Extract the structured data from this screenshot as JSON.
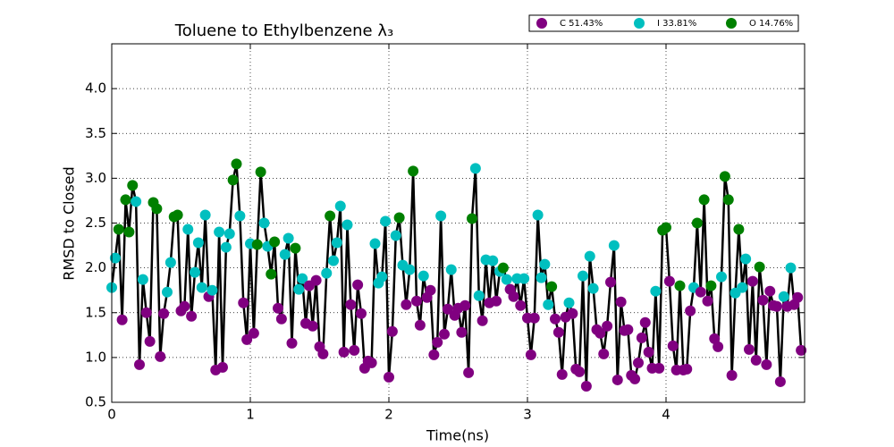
{
  "chart_data": {
    "type": "line",
    "title": "Toluene to Ethylbenzene λ₃",
    "xlabel": "Time(ns)",
    "ylabel": "RMSD to Closed",
    "line_color": "#000000",
    "legend": [
      {
        "name": "C 51.43%",
        "color": "purple"
      },
      {
        "name": "I 33.81%",
        "color": "#00bfbf"
      },
      {
        "name": "O 14.76%",
        "color": "green"
      }
    ],
    "x": [
      0,
      0.025,
      0.05,
      0.075,
      0.1,
      0.125,
      0.15,
      0.175,
      0.2,
      0.225,
      0.25,
      0.275,
      0.3,
      0.325,
      0.35,
      0.375,
      0.4,
      0.425,
      0.45,
      0.475,
      0.5,
      0.525,
      0.55,
      0.575,
      0.6,
      0.625,
      0.65,
      0.675,
      0.7,
      0.725,
      0.75,
      0.775,
      0.8,
      0.825,
      0.85,
      0.875,
      0.9,
      0.925,
      0.95,
      0.975,
      1,
      1.025,
      1.05,
      1.075,
      1.1,
      1.125,
      1.15,
      1.175,
      1.2,
      1.225,
      1.25,
      1.275,
      1.3,
      1.325,
      1.35,
      1.375,
      1.4,
      1.425,
      1.45,
      1.475,
      1.5,
      1.525,
      1.55,
      1.575,
      1.6,
      1.625,
      1.65,
      1.675,
      1.7,
      1.725,
      1.75,
      1.775,
      1.8,
      1.825,
      1.85,
      1.875,
      1.9,
      1.925,
      1.95,
      1.975,
      2,
      2.025,
      2.05,
      2.075,
      2.1,
      2.125,
      2.15,
      2.175,
      2.2,
      2.225,
      2.25,
      2.275,
      2.3,
      2.325,
      2.35,
      2.375,
      2.4,
      2.425,
      2.45,
      2.475,
      2.5,
      2.525,
      2.55,
      2.575,
      2.6,
      2.625,
      2.65,
      2.675,
      2.7,
      2.725,
      2.75,
      2.775,
      2.8,
      2.825,
      2.85,
      2.875,
      2.9,
      2.925,
      2.95,
      2.975,
      3,
      3.025,
      3.05,
      3.075,
      3.1,
      3.125,
      3.15,
      3.175,
      3.2,
      3.225,
      3.25,
      3.275,
      3.3,
      3.325,
      3.35,
      3.375,
      3.4,
      3.425,
      3.45,
      3.475,
      3.5,
      3.525,
      3.55,
      3.575,
      3.6,
      3.625,
      3.65,
      3.675,
      3.7,
      3.725,
      3.75,
      3.775,
      3.8,
      3.825,
      3.85,
      3.875,
      3.9,
      3.925,
      3.95,
      3.975,
      4,
      4.025,
      4.05,
      4.075,
      4.1,
      4.125,
      4.15,
      4.175,
      4.2,
      4.225,
      4.25,
      4.275,
      4.3,
      4.325,
      4.35,
      4.375,
      4.4,
      4.425,
      4.45,
      4.475,
      4.5,
      4.525,
      4.55,
      4.575,
      4.6,
      4.625,
      4.65,
      4.675,
      4.7,
      4.725,
      4.75,
      4.775,
      4.8,
      4.825,
      4.85,
      4.875,
      4.9,
      4.925,
      4.95,
      4.975
    ],
    "values": [
      1.78,
      2.11,
      2.43,
      1.42,
      2.76,
      2.4,
      2.92,
      2.74,
      0.92,
      1.87,
      1.5,
      1.18,
      2.73,
      2.66,
      1.01,
      1.49,
      1.73,
      2.06,
      2.57,
      2.59,
      1.52,
      1.57,
      2.43,
      1.46,
      1.95,
      2.28,
      1.78,
      2.59,
      1.68,
      1.75,
      0.86,
      2.4,
      0.89,
      2.23,
      2.38,
      2.98,
      3.16,
      2.58,
      1.61,
      1.2,
      2.27,
      1.27,
      2.26,
      3.07,
      2.5,
      2.24,
      1.93,
      2.29,
      1.55,
      1.43,
      2.15,
      2.33,
      1.16,
      2.22,
      1.76,
      1.88,
      1.38,
      1.8,
      1.35,
      1.86,
      1.12,
      1.04,
      1.94,
      2.58,
      2.08,
      2.28,
      2.69,
      1.06,
      2.48,
      1.59,
      1.08,
      1.81,
      1.49,
      0.88,
      0.96,
      0.94,
      2.27,
      1.83,
      1.9,
      2.52,
      0.78,
      1.29,
      2.36,
      2.56,
      2.03,
      1.59,
      1.98,
      3.08,
      1.63,
      1.36,
      1.91,
      1.67,
      1.75,
      1.03,
      1.17,
      2.58,
      1.26,
      1.54,
      1.98,
      1.47,
      1.55,
      1.28,
      1.58,
      0.83,
      2.55,
      3.11,
      1.69,
      1.41,
      2.09,
      1.61,
      2.08,
      1.63,
      1.96,
      2.0,
      1.87,
      1.76,
      1.68,
      1.88,
      1.58,
      1.88,
      1.44,
      1.03,
      1.44,
      2.59,
      1.89,
      2.04,
      1.59,
      1.79,
      1.43,
      1.28,
      0.81,
      1.45,
      1.61,
      1.49,
      0.87,
      0.84,
      1.91,
      0.68,
      2.13,
      1.77,
      1.31,
      1.27,
      1.04,
      1.35,
      1.84,
      2.25,
      0.75,
      1.62,
      1.3,
      1.31,
      0.8,
      0.76,
      0.94,
      1.22,
      1.39,
      1.06,
      0.88,
      1.74,
      0.88,
      2.42,
      2.45,
      1.85,
      1.13,
      0.86,
      1.8,
      0.86,
      0.87,
      1.52,
      1.78,
      2.5,
      1.73,
      2.76,
      1.63,
      1.8,
      1.21,
      1.12,
      1.9,
      3.02,
      2.76,
      0.8,
      1.72,
      2.43,
      1.78,
      2.1,
      1.09,
      1.85,
      0.97,
      2.01,
      1.64,
      0.92,
      1.74,
      1.58,
      1.57,
      0.73,
      1.68,
      1.57,
      2.0,
      1.59,
      1.67,
      1.08
    ],
    "marker_colors": [
      "#00bfbf",
      "#00bfbf",
      "green",
      "purple",
      "green",
      "green",
      "green",
      "#00bfbf",
      "purple",
      "#00bfbf",
      "purple",
      "purple",
      "green",
      "green",
      "purple",
      "purple",
      "#00bfbf",
      "#00bfbf",
      "green",
      "green",
      "purple",
      "purple",
      "#00bfbf",
      "purple",
      "#00bfbf",
      "#00bfbf",
      "#00bfbf",
      "#00bfbf",
      "purple",
      "#00bfbf",
      "purple",
      "#00bfbf",
      "purple",
      "#00bfbf",
      "#00bfbf",
      "green",
      "green",
      "#00bfbf",
      "purple",
      "purple",
      "#00bfbf",
      "purple",
      "green",
      "green",
      "#00bfbf",
      "#00bfbf",
      "green",
      "green",
      "purple",
      "purple",
      "#00bfbf",
      "#00bfbf",
      "purple",
      "green",
      "#00bfbf",
      "#00bfbf",
      "purple",
      "purple",
      "purple",
      "purple",
      "purple",
      "purple",
      "#00bfbf",
      "green",
      "#00bfbf",
      "#00bfbf",
      "#00bfbf",
      "purple",
      "#00bfbf",
      "purple",
      "purple",
      "purple",
      "purple",
      "purple",
      "purple",
      "purple",
      "#00bfbf",
      "#00bfbf",
      "#00bfbf",
      "#00bfbf",
      "purple",
      "purple",
      "#00bfbf",
      "green",
      "#00bfbf",
      "purple",
      "#00bfbf",
      "green",
      "purple",
      "purple",
      "#00bfbf",
      "purple",
      "purple",
      "purple",
      "purple",
      "#00bfbf",
      "purple",
      "purple",
      "#00bfbf",
      "purple",
      "purple",
      "purple",
      "purple",
      "purple",
      "green",
      "#00bfbf",
      "#00bfbf",
      "purple",
      "#00bfbf",
      "purple",
      "#00bfbf",
      "purple",
      "#00bfbf",
      "green",
      "#00bfbf",
      "purple",
      "purple",
      "#00bfbf",
      "purple",
      "#00bfbf",
      "purple",
      "purple",
      "purple",
      "#00bfbf",
      "#00bfbf",
      "#00bfbf",
      "#00bfbf",
      "green",
      "purple",
      "purple",
      "purple",
      "purple",
      "#00bfbf",
      "purple",
      "purple",
      "purple",
      "#00bfbf",
      "purple",
      "#00bfbf",
      "#00bfbf",
      "purple",
      "purple",
      "purple",
      "purple",
      "purple",
      "#00bfbf",
      "purple",
      "purple",
      "purple",
      "purple",
      "purple",
      "purple",
      "purple",
      "purple",
      "purple",
      "purple",
      "purple",
      "#00bfbf",
      "purple",
      "green",
      "green",
      "purple",
      "purple",
      "purple",
      "green",
      "purple",
      "purple",
      "purple",
      "#00bfbf",
      "green",
      "purple",
      "green",
      "purple",
      "green",
      "purple",
      "purple",
      "#00bfbf",
      "green",
      "green",
      "purple",
      "#00bfbf",
      "green",
      "#00bfbf",
      "#00bfbf",
      "purple",
      "purple",
      "purple",
      "green",
      "purple",
      "purple",
      "purple",
      "purple",
      "purple",
      "purple",
      "#00bfbf",
      "purple",
      "#00bfbf",
      "purple",
      "purple",
      "purple"
    ],
    "xlim": [
      0,
      5
    ],
    "ylim": [
      0.5,
      4.5
    ],
    "xticks": [
      0,
      1,
      2,
      3,
      4
    ],
    "yticks": [
      0.5,
      {
        "value": 1,
        "label": "1.0"
      },
      1.5,
      {
        "value": 2,
        "label": "2.0"
      },
      2.5,
      {
        "value": 3,
        "label": "3.0"
      },
      3.5,
      {
        "value": 4,
        "label": "4.0"
      }
    ],
    "grid": true
  }
}
